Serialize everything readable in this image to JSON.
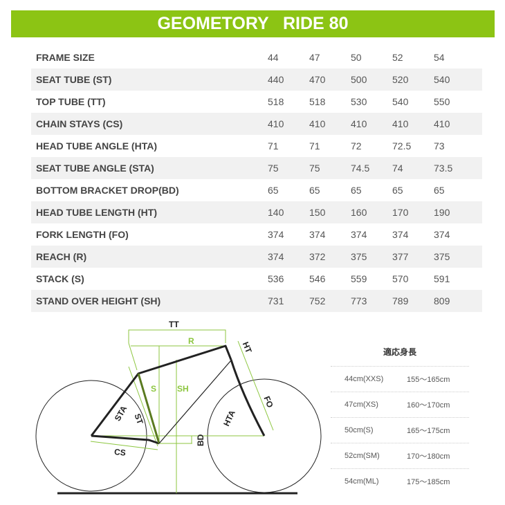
{
  "title": "GEOMETORY   RIDE 80",
  "colors": {
    "accent": "#8cc414",
    "diagram_green": "#8cc63f"
  },
  "table": [
    {
      "label": "FRAME SIZE",
      "values": [
        "44",
        "47",
        "50",
        "52",
        "54"
      ]
    },
    {
      "label": "SEAT TUBE (ST)",
      "values": [
        "440",
        "470",
        "500",
        "520",
        "540"
      ]
    },
    {
      "label": "TOP TUBE (TT)",
      "values": [
        "518",
        "518",
        "530",
        "540",
        "550"
      ]
    },
    {
      "label": "CHAIN STAYS (CS)",
      "values": [
        "410",
        "410",
        "410",
        "410",
        "410"
      ]
    },
    {
      "label": "HEAD TUBE ANGLE (HTA)",
      "values": [
        "71",
        "71",
        "72",
        "72.5",
        "73"
      ]
    },
    {
      "label": "SEAT TUBE ANGLE (STA)",
      "values": [
        "75",
        "75",
        "74.5",
        "74",
        "73.5"
      ]
    },
    {
      "label": "BOTTOM BRACKET DROP(BD)",
      "values": [
        "65",
        "65",
        "65",
        "65",
        "65"
      ]
    },
    {
      "label": "HEAD TUBE LENGTH (HT)",
      "values": [
        "140",
        "150",
        "160",
        "170",
        "190"
      ]
    },
    {
      "label": "FORK LENGTH (FO)",
      "values": [
        "374",
        "374",
        "374",
        "374",
        "374"
      ]
    },
    {
      "label": "REACH (R)",
      "values": [
        "374",
        "372",
        "375",
        "377",
        "375"
      ]
    },
    {
      "label": "STACK (S)",
      "values": [
        "536",
        "546",
        "559",
        "570",
        "591"
      ]
    },
    {
      "label": "STAND OVER HEIGHT (SH)",
      "values": [
        "731",
        "752",
        "773",
        "789",
        "809"
      ]
    }
  ],
  "diagram": {
    "TT": "TT",
    "R": "R",
    "HT": "HT",
    "S": "S",
    "SH": "SH",
    "STA": "STA",
    "ST": "ST",
    "HTA": "HTA",
    "FO": "FO",
    "BD": "BD",
    "CS": "CS"
  },
  "fit": {
    "title": "適応身長",
    "rows": [
      {
        "size": "44cm(XXS)",
        "height": "155〜165cm"
      },
      {
        "size": "47cm(XS)",
        "height": "160〜170cm"
      },
      {
        "size": "50cm(S)",
        "height": "165〜175cm"
      },
      {
        "size": "52cm(SM)",
        "height": "170〜180cm"
      },
      {
        "size": "54cm(ML)",
        "height": "175〜185cm"
      }
    ]
  }
}
